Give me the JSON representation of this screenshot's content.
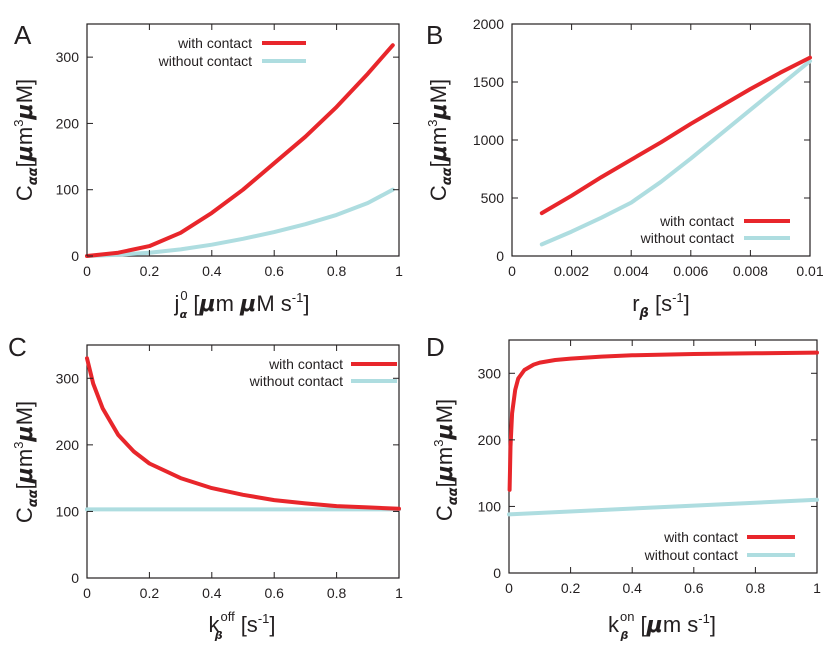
{
  "colors": {
    "with_contact": "#e8262b",
    "without_contact": "#aedde0"
  },
  "chart_data": [
    {
      "panel": "A",
      "type": "line",
      "xlabel": {
        "main": "j",
        "sup": "0",
        "sub": "α",
        "unit_pre": " [",
        "mu1": "μ",
        "unit_mid": "m ",
        "mu2": "μ",
        "unit_end": "M s",
        "unit_sup": "-1",
        "close": "]"
      },
      "ylabel": {
        "main": "C",
        "sub": "αα",
        "open": "[",
        "mu1": "μ",
        "mid": "m",
        "sup": "3",
        "mu2": "μ",
        "end": "M]"
      },
      "xlim": [
        0,
        1
      ],
      "ylim": [
        0,
        350
      ],
      "xticks": [
        "0",
        "0.2",
        "0.4",
        "0.6",
        "0.8",
        "1"
      ],
      "yticks": [
        "0",
        "100",
        "200",
        "300"
      ],
      "legend": {
        "position": "top-left",
        "items": [
          "with contact",
          "without contact"
        ]
      },
      "series": [
        {
          "name": "with contact",
          "x": [
            0,
            0.1,
            0.2,
            0.3,
            0.4,
            0.5,
            0.6,
            0.7,
            0.8,
            0.9,
            0.98
          ],
          "y": [
            0,
            5,
            15,
            35,
            65,
            100,
            140,
            180,
            225,
            275,
            318
          ]
        },
        {
          "name": "without contact",
          "x": [
            0,
            0.1,
            0.2,
            0.3,
            0.4,
            0.5,
            0.6,
            0.7,
            0.8,
            0.9,
            0.98
          ],
          "y": [
            0,
            2,
            5,
            10,
            17,
            26,
            36,
            48,
            62,
            80,
            100
          ]
        }
      ]
    },
    {
      "panel": "B",
      "type": "line",
      "xlabel": {
        "main": "r",
        "sub": "β",
        "unit": "  [s",
        "unit_sup": "-1",
        "close": "]"
      },
      "ylabel": {
        "main": "C",
        "sub": "αα",
        "open": "[",
        "mu1": "μ",
        "mid": "m",
        "sup": "3",
        "mu2": "μ",
        "end": "M]"
      },
      "xlim": [
        0,
        0.01
      ],
      "ylim": [
        0,
        2000
      ],
      "xticks": [
        "0",
        "0.002",
        "0.004",
        "0.006",
        "0.008",
        "0.01"
      ],
      "yticks": [
        "0",
        "500",
        "1000",
        "1500",
        "2000"
      ],
      "legend": {
        "position": "bottom-right",
        "items": [
          "with contact",
          "without contact"
        ]
      },
      "series": [
        {
          "name": "with contact",
          "x": [
            0.001,
            0.002,
            0.003,
            0.004,
            0.005,
            0.006,
            0.007,
            0.008,
            0.009,
            0.01
          ],
          "y": [
            370,
            520,
            680,
            830,
            980,
            1140,
            1290,
            1440,
            1580,
            1710
          ]
        },
        {
          "name": "without contact",
          "x": [
            0.001,
            0.002,
            0.003,
            0.004,
            0.005,
            0.006,
            0.007,
            0.008,
            0.009,
            0.01
          ],
          "y": [
            100,
            210,
            330,
            460,
            640,
            840,
            1050,
            1260,
            1470,
            1680
          ]
        }
      ]
    },
    {
      "panel": "C",
      "type": "line",
      "xlabel": {
        "main": "k",
        "sub": "β",
        "sup": "off",
        "unit": " [s",
        "unit_sup": "-1",
        "close": "]"
      },
      "ylabel": {
        "main": "C",
        "sub": "αα",
        "open": "[",
        "mu1": "μ",
        "mid": "m",
        "sup": "3",
        "mu2": "μ",
        "end": "M]"
      },
      "xlim": [
        0,
        1
      ],
      "ylim": [
        0,
        350
      ],
      "xticks": [
        "0",
        "0.2",
        "0.4",
        "0.6",
        "0.8",
        "1"
      ],
      "yticks": [
        "0",
        "100",
        "200",
        "300"
      ],
      "legend": {
        "position": "top-right",
        "items": [
          "with contact",
          "without contact"
        ]
      },
      "series": [
        {
          "name": "with contact",
          "x": [
            0,
            0.02,
            0.05,
            0.1,
            0.15,
            0.2,
            0.3,
            0.4,
            0.5,
            0.6,
            0.7,
            0.8,
            0.9,
            1.0
          ],
          "y": [
            330,
            292,
            255,
            215,
            190,
            172,
            150,
            135,
            125,
            117,
            112,
            108,
            106,
            104
          ]
        },
        {
          "name": "without contact",
          "x": [
            0,
            1
          ],
          "y": [
            103,
            103
          ]
        }
      ]
    },
    {
      "panel": "D",
      "type": "line",
      "xlabel": {
        "main": "k",
        "sub": "β",
        "sup": "on",
        "unit_pre": " [",
        "mu1": "μ",
        "unit": "m s",
        "unit_sup": "-1",
        "close": "]"
      },
      "ylabel": {
        "main": "C",
        "sub": "αα",
        "open": "[",
        "mu1": "μ",
        "mid": "m",
        "sup": "3",
        "mu2": "μ",
        "end": "M]"
      },
      "xlim": [
        0,
        1
      ],
      "ylim": [
        0,
        350
      ],
      "xticks": [
        "0",
        "0.2",
        "0.4",
        "0.6",
        "0.8",
        "1"
      ],
      "yticks": [
        "0",
        "100",
        "200",
        "300"
      ],
      "legend": {
        "position": "bottom-right",
        "items": [
          "with contact",
          "without contact"
        ]
      },
      "series": [
        {
          "name": "with contact",
          "x": [
            0.002,
            0.005,
            0.01,
            0.02,
            0.03,
            0.05,
            0.08,
            0.1,
            0.15,
            0.2,
            0.3,
            0.4,
            0.6,
            0.8,
            1.0
          ],
          "y": [
            125,
            190,
            240,
            275,
            292,
            305,
            313,
            316,
            320,
            322,
            325,
            327,
            329,
            330,
            331
          ]
        },
        {
          "name": "without contact",
          "x": [
            0,
            1
          ],
          "y": [
            88,
            110
          ]
        }
      ]
    }
  ]
}
